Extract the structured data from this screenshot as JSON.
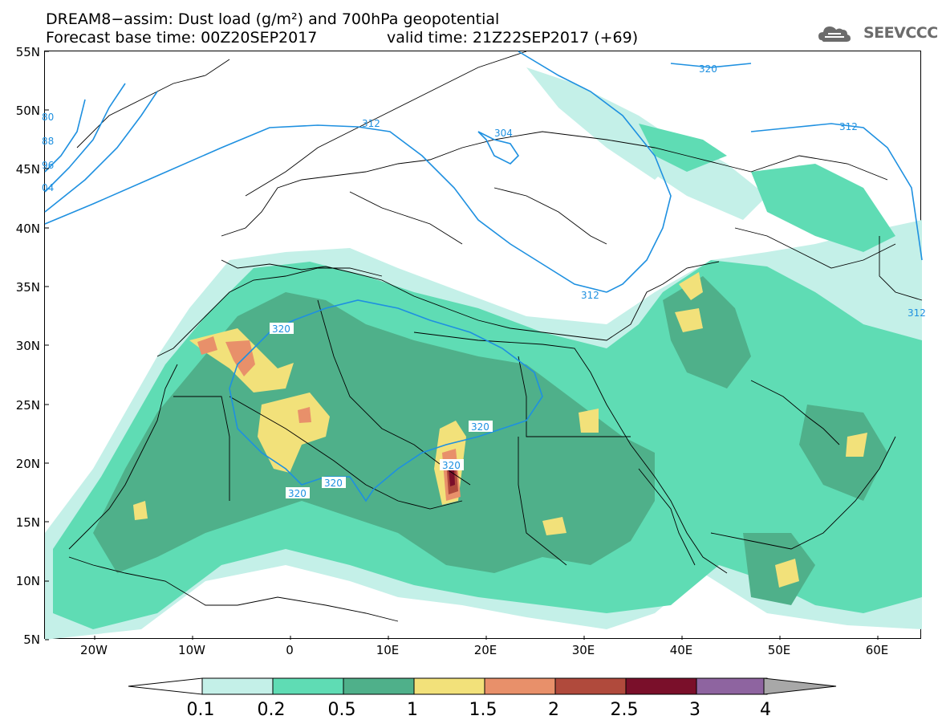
{
  "header": {
    "line1": "DREAM8−assim: Dust load (g/m²) and 700hPa geopotential",
    "line2": "Forecast base time: 00Z20SEP2017",
    "line3": "valid time: 21Z22SEP2017 (+69)"
  },
  "logo": {
    "text": "SEEVCCC",
    "icon": "cloud-logo-icon"
  },
  "map": {
    "lat_labels": [
      "55N",
      "50N",
      "45N",
      "40N",
      "35N",
      "30N",
      "25N",
      "20N",
      "15N",
      "10N",
      "5N"
    ],
    "lon_labels": [
      "20W",
      "10W",
      "0",
      "10E",
      "20E",
      "30E",
      "40E",
      "50E",
      "60E"
    ],
    "contour_labels": {
      "c320_n": "320",
      "c312_w": "312",
      "c304_c": "304",
      "c312_e": "312",
      "c312_s": "312",
      "c312_far": "312",
      "c320_a": "320",
      "c320_b": "320",
      "c320_c": "320",
      "c320_d": "320",
      "c320_e": "320",
      "w80": "80",
      "w88": "88",
      "w96": "96",
      "w04": "04"
    },
    "colors": {
      "land_line": "#000000",
      "contour": "#1e90e0",
      "c01": "#c4f0e8",
      "c02": "#5fdcb4",
      "c05": "#4fb08a",
      "c1": "#f2e17a",
      "c15": "#e8906a",
      "c2": "#b04a3c",
      "c25": "#7a0f2a",
      "c3": "#8e64a0",
      "c4": "#a8a8a8"
    }
  },
  "colorbar": {
    "labels": [
      "0.1",
      "0.2",
      "0.5",
      "1",
      "1.5",
      "2",
      "2.5",
      "3",
      "4"
    ],
    "colors": [
      "#c4f0e8",
      "#5fdcb4",
      "#4fb08a",
      "#f2e17a",
      "#e8906a",
      "#b04a3c",
      "#7a0f2a",
      "#8e64a0"
    ]
  }
}
